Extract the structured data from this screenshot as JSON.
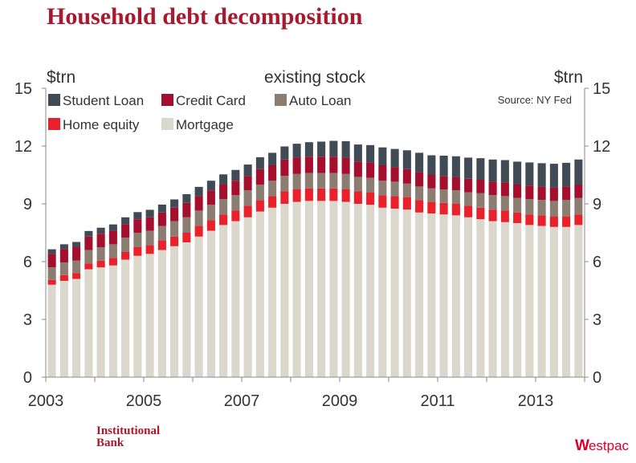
{
  "header": {
    "title": "Household debt decomposition"
  },
  "footer": {
    "bank_line1": "Institutional",
    "bank_line2": "Bank",
    "logo_w": "W",
    "logo_text": "estpac"
  },
  "colors": {
    "student_loan": "#414b55",
    "credit_card": "#a50e2d",
    "auto_loan": "#8c7d73",
    "home_equity": "#e8212a",
    "mortgage": "#dcd7cd",
    "title": "#a6192e",
    "axis": "#888888"
  },
  "chart_data": {
    "type": "bar",
    "stacked": true,
    "title": "existing stock",
    "ylabel_left": "$trn",
    "ylabel_right": "$trn",
    "source": "Source: NY Fed",
    "ylim": [
      0,
      15
    ],
    "yticks": [
      0,
      3,
      6,
      9,
      12,
      15
    ],
    "xticks": [
      "2003",
      "2005",
      "2007",
      "2009",
      "2011",
      "2013"
    ],
    "x_start": 2003.0,
    "x_end": 2014.0,
    "legend_position": "top-left",
    "categories": [
      "2003Q1",
      "2003Q2",
      "2003Q3",
      "2003Q4",
      "2004Q1",
      "2004Q2",
      "2004Q3",
      "2004Q4",
      "2005Q1",
      "2005Q2",
      "2005Q3",
      "2005Q4",
      "2006Q1",
      "2006Q2",
      "2006Q3",
      "2006Q4",
      "2007Q1",
      "2007Q2",
      "2007Q3",
      "2007Q4",
      "2008Q1",
      "2008Q2",
      "2008Q3",
      "2008Q4",
      "2009Q1",
      "2009Q2",
      "2009Q3",
      "2009Q4",
      "2010Q1",
      "2010Q2",
      "2010Q3",
      "2010Q4",
      "2011Q1",
      "2011Q2",
      "2011Q3",
      "2011Q4",
      "2012Q1",
      "2012Q2",
      "2012Q3",
      "2012Q4",
      "2013Q1",
      "2013Q2",
      "2013Q3",
      "2013Q4"
    ],
    "series": [
      {
        "name": "Mortgage",
        "key": "mortgage",
        "values": [
          4.8,
          5.0,
          5.1,
          5.6,
          5.7,
          5.8,
          6.1,
          6.3,
          6.4,
          6.6,
          6.8,
          7.0,
          7.3,
          7.6,
          7.9,
          8.1,
          8.3,
          8.6,
          8.8,
          9.0,
          9.1,
          9.15,
          9.15,
          9.15,
          9.1,
          9.0,
          8.95,
          8.8,
          8.75,
          8.7,
          8.55,
          8.5,
          8.45,
          8.4,
          8.3,
          8.2,
          8.1,
          8.05,
          8.0,
          7.9,
          7.85,
          7.8,
          7.8,
          7.9
        ]
      },
      {
        "name": "Home equity",
        "key": "home_equity",
        "values": [
          0.25,
          0.3,
          0.3,
          0.3,
          0.35,
          0.4,
          0.4,
          0.45,
          0.45,
          0.5,
          0.5,
          0.5,
          0.55,
          0.55,
          0.55,
          0.55,
          0.6,
          0.6,
          0.6,
          0.65,
          0.65,
          0.65,
          0.65,
          0.65,
          0.65,
          0.65,
          0.65,
          0.65,
          0.65,
          0.65,
          0.65,
          0.6,
          0.6,
          0.6,
          0.6,
          0.6,
          0.6,
          0.6,
          0.55,
          0.55,
          0.55,
          0.55,
          0.55,
          0.55
        ]
      },
      {
        "name": "Auto Loan",
        "key": "auto_loan",
        "values": [
          0.65,
          0.65,
          0.65,
          0.7,
          0.7,
          0.7,
          0.75,
          0.75,
          0.75,
          0.75,
          0.8,
          0.8,
          0.8,
          0.8,
          0.8,
          0.8,
          0.8,
          0.8,
          0.8,
          0.8,
          0.8,
          0.8,
          0.8,
          0.8,
          0.8,
          0.75,
          0.75,
          0.75,
          0.75,
          0.7,
          0.7,
          0.7,
          0.7,
          0.7,
          0.7,
          0.75,
          0.75,
          0.75,
          0.75,
          0.8,
          0.8,
          0.8,
          0.85,
          0.85
        ]
      },
      {
        "name": "Credit Card",
        "key": "credit_card",
        "values": [
          0.7,
          0.7,
          0.7,
          0.7,
          0.7,
          0.7,
          0.7,
          0.7,
          0.7,
          0.7,
          0.7,
          0.75,
          0.75,
          0.75,
          0.75,
          0.75,
          0.75,
          0.8,
          0.8,
          0.85,
          0.85,
          0.85,
          0.85,
          0.85,
          0.85,
          0.8,
          0.8,
          0.8,
          0.75,
          0.75,
          0.75,
          0.7,
          0.7,
          0.7,
          0.7,
          0.7,
          0.7,
          0.7,
          0.7,
          0.7,
          0.7,
          0.7,
          0.7,
          0.7
        ]
      },
      {
        "name": "Student Loan",
        "key": "student_loan",
        "values": [
          0.24,
          0.25,
          0.27,
          0.29,
          0.31,
          0.33,
          0.35,
          0.37,
          0.39,
          0.41,
          0.43,
          0.45,
          0.48,
          0.5,
          0.53,
          0.56,
          0.59,
          0.62,
          0.65,
          0.68,
          0.72,
          0.75,
          0.78,
          0.82,
          0.85,
          0.88,
          0.9,
          0.93,
          0.95,
          0.98,
          1.0,
          1.02,
          1.05,
          1.07,
          1.1,
          1.12,
          1.15,
          1.17,
          1.19,
          1.2,
          1.21,
          1.23,
          1.23,
          1.3
        ]
      }
    ],
    "legend": [
      {
        "label": "Student Loan",
        "key": "student_loan"
      },
      {
        "label": "Credit Card",
        "key": "credit_card"
      },
      {
        "label": "Auto Loan",
        "key": "auto_loan"
      },
      {
        "label": "Home equity",
        "key": "home_equity"
      },
      {
        "label": "Mortgage",
        "key": "mortgage"
      }
    ]
  }
}
